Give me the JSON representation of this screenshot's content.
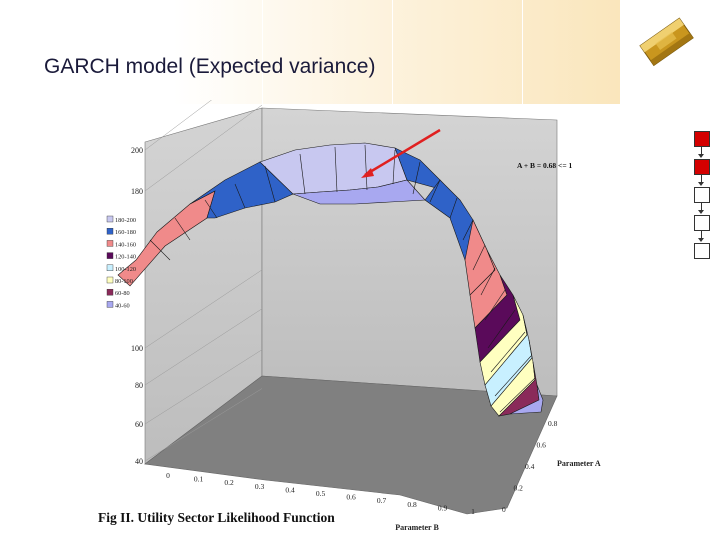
{
  "slide": {
    "title": "GARCH model (Expected variance)",
    "caption": "Fig II. Utility Sector Likelihood Function",
    "logo_icon": "gold-bar-icon",
    "nav_icons": [
      "nav-square-filled",
      "nav-square-filled",
      "nav-square-empty",
      "nav-square-empty"
    ],
    "accent_color": "#d40000"
  },
  "chart_data": {
    "type": "surface",
    "annotation": "A + B = 0.68 <= 1",
    "zlim": [
      40,
      200
    ],
    "z_ticks": [
      "40",
      "60",
      "80",
      "100",
      "180",
      "200"
    ],
    "x_label": "Parameter B",
    "x_ticks": [
      "0",
      "0.1",
      "0.2",
      "0.3",
      "0.4",
      "0.5",
      "0.6",
      "0.7",
      "0.8",
      "0.9",
      "1"
    ],
    "y_label": "Parameter A",
    "y_ticks": [
      "0",
      "0.2",
      "0.4",
      "0.6",
      "0.8"
    ],
    "legend_position": "left",
    "legend": [
      {
        "label": "180-200",
        "color": "#c8c8f0"
      },
      {
        "label": "160-180",
        "color": "#2f62c8"
      },
      {
        "label": "140-160",
        "color": "#f08a8a"
      },
      {
        "label": "120-140",
        "color": "#5a0a5a"
      },
      {
        "label": "100-120",
        "color": "#c8f0ff"
      },
      {
        "label": "80-100",
        "color": "#ffffc0"
      },
      {
        "label": "60-80",
        "color": "#8a2a5a"
      },
      {
        "label": "40-60",
        "color": "#a8a8f0"
      }
    ]
  }
}
